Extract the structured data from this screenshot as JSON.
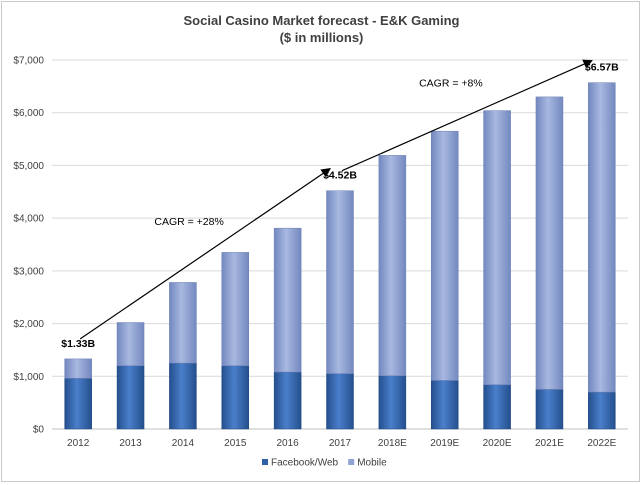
{
  "chart_data": {
    "type": "bar",
    "stacked": true,
    "title": "Social Casino Market forecast - E&K Gaming",
    "subtitle": "($ in millions)",
    "categories": [
      "2012",
      "2013",
      "2014",
      "2015",
      "2016",
      "2017",
      "2018E",
      "2019E",
      "2020E",
      "2021E",
      "2022E"
    ],
    "series": [
      {
        "name": "Facebook/Web",
        "color": "#2e62a8",
        "values": [
          960,
          1200,
          1250,
          1200,
          1080,
          1050,
          1010,
          920,
          840,
          750,
          700
        ]
      },
      {
        "name": "Mobile",
        "color": "#8fa3d4",
        "values": [
          370,
          820,
          1530,
          2150,
          2730,
          3470,
          4180,
          4730,
          5200,
          5550,
          5870
        ]
      }
    ],
    "ylim": [
      0,
      7000
    ],
    "yticks": [
      0,
      1000,
      2000,
      3000,
      4000,
      5000,
      6000,
      7000
    ],
    "ytick_labels": [
      "$0",
      "$1,000",
      "$2,000",
      "$3,000",
      "$4,000",
      "$5,000",
      "$6,000",
      "$7,000"
    ],
    "grid": true,
    "legend_position": "bottom",
    "data_labels": [
      {
        "category": "2012",
        "text": "$1.33B"
      },
      {
        "category": "2017",
        "text": "$4.52B"
      },
      {
        "category": "2022E",
        "text": "$6.57B"
      }
    ],
    "annotations": [
      {
        "text": "CAGR = +28%"
      },
      {
        "text": "CAGR = +8%"
      }
    ]
  }
}
